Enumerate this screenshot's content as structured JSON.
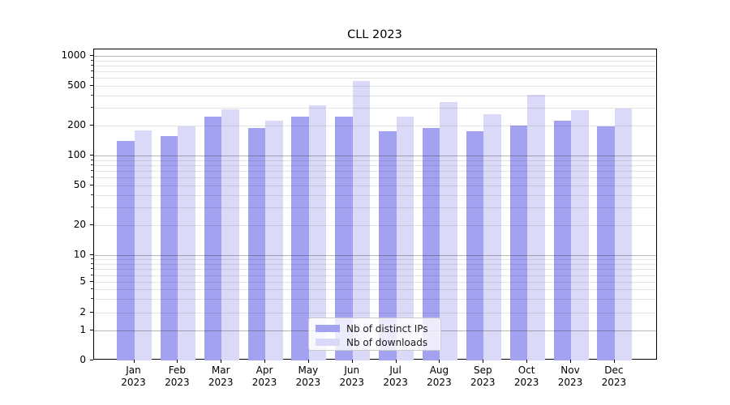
{
  "chart_data": {
    "type": "bar",
    "title": "CLL 2023",
    "categories": [
      "Jan",
      "Feb",
      "Mar",
      "Apr",
      "May",
      "Jun",
      "Jul",
      "Aug",
      "Sep",
      "Oct",
      "Nov",
      "Dec"
    ],
    "category_year": "2023",
    "series": [
      {
        "name": "Nb of distinct IPs",
        "color": "#a2a2f0",
        "values": [
          139,
          158,
          247,
          189,
          247,
          247,
          175,
          190,
          175,
          200,
          222,
          198
        ]
      },
      {
        "name": "Nb of downloads",
        "color": "#dadaf8",
        "values": [
          179,
          197,
          289,
          225,
          319,
          560,
          246,
          342,
          260,
          405,
          285,
          298
        ]
      }
    ],
    "yscale": "symlog",
    "ylim": [
      0,
      1000
    ],
    "y_tick_labels": [
      1000,
      500,
      200,
      100,
      50,
      20,
      10,
      5,
      2,
      1,
      0
    ],
    "major_gridlines": [
      1,
      10,
      100,
      1000
    ],
    "minor_gridlines": [
      2,
      3,
      4,
      5,
      6,
      7,
      8,
      9,
      20,
      30,
      40,
      50,
      60,
      70,
      80,
      90,
      200,
      300,
      400,
      500,
      600,
      700,
      800,
      900
    ],
    "grid": true,
    "legend_position": "lower center",
    "xlabel": "",
    "ylabel": ""
  }
}
